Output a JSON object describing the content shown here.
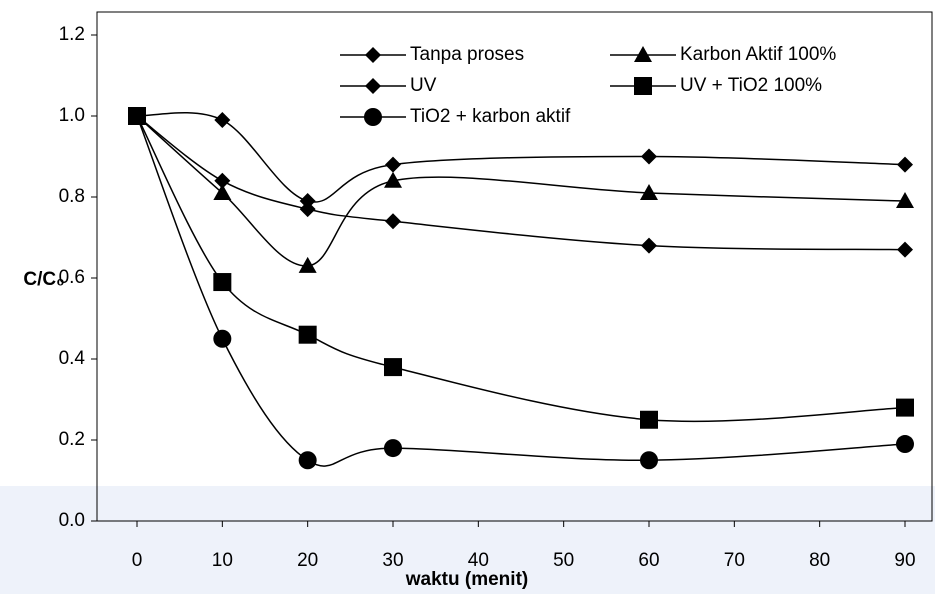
{
  "chart_data": {
    "type": "line",
    "x_label": "waktu (menit)",
    "y_label": "C/C₀",
    "x": [
      0,
      10,
      20,
      30,
      60,
      90
    ],
    "xlim": [
      0,
      90
    ],
    "xticks": [
      0,
      10,
      20,
      30,
      40,
      50,
      60,
      70,
      80,
      90
    ],
    "ylim": [
      0,
      1.2
    ],
    "yticks": [
      {
        "value": 0,
        "label": "0.0"
      },
      0.2,
      0.4,
      0.6,
      0.8,
      {
        "value": 1,
        "label": "1.0"
      },
      1.2
    ],
    "series": [
      {
        "name": "Tanpa proses",
        "color": "#000000",
        "marker": "diamond",
        "values": [
          1.0,
          0.99,
          0.79,
          0.88,
          0.9,
          0.88
        ]
      },
      {
        "name": "Karbon Aktif 100%",
        "color": "#000000",
        "marker": "triangle",
        "values": [
          1.0,
          0.81,
          0.63,
          0.84,
          0.81,
          0.79
        ]
      },
      {
        "name": "UV",
        "color": "#000000",
        "marker": "diamond",
        "values": [
          1.0,
          0.84,
          0.77,
          0.74,
          0.68,
          0.67
        ]
      },
      {
        "name": "UV + TiO2 100%",
        "color": "#000000",
        "marker": "square",
        "values": [
          1.0,
          0.59,
          0.46,
          0.38,
          0.25,
          0.28
        ]
      },
      {
        "name": "TiO2 + karbon aktif",
        "color": "#000000",
        "marker": "circle",
        "values": [
          1.0,
          0.45,
          0.15,
          0.18,
          0.15,
          0.19
        ]
      }
    ]
  }
}
